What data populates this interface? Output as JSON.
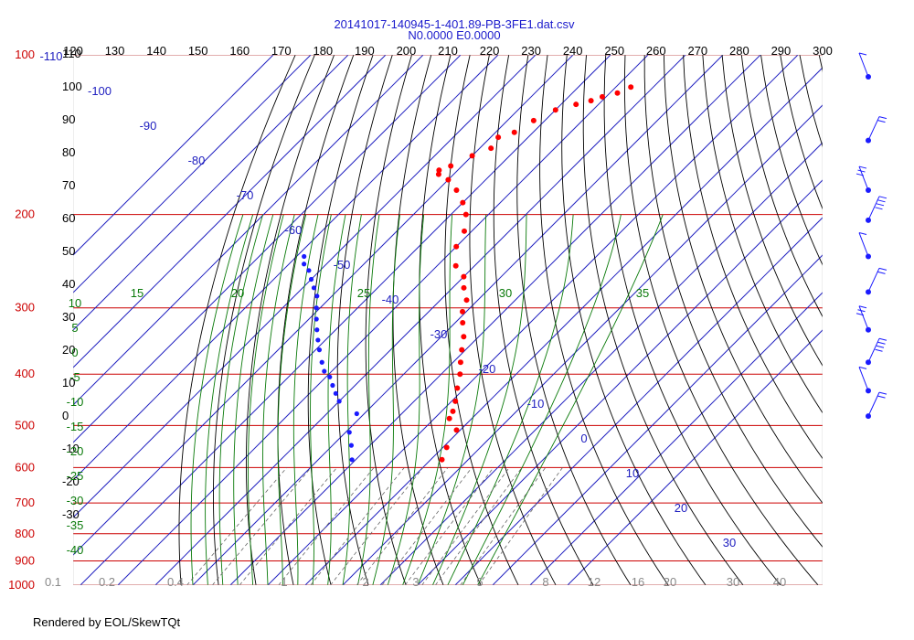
{
  "title": "20141017-140945-1-401.89-PB-3FE1.dat.csv",
  "subtitle": "N0.0000 E0.0000",
  "footer": "Rendered by EOL/SkewTQt",
  "colors": {
    "isotherm": "#2020c0",
    "isobar": "#cc0000",
    "dry_adiabat": "#000000",
    "moist_adiabat": "#0a7a0a",
    "mixing_ratio": "#666666",
    "temperature": "#ff0000",
    "dewpoint": "#1a1aff",
    "wind": "#1a1aff"
  },
  "chart_data": {
    "type": "scatter",
    "chart_kind": "skew-T log-P diagram",
    "pressure_range": [
      100,
      1000
    ],
    "pressure_labels": [
      "100",
      "200",
      "300",
      "400",
      "500",
      "600",
      "700",
      "800",
      "900",
      "1000"
    ],
    "top_temperature_labels": [
      "120",
      "130",
      "140",
      "150",
      "160",
      "170",
      "180",
      "190",
      "200",
      "210",
      "220",
      "230",
      "240",
      "250",
      "260",
      "270",
      "280",
      "290",
      "300"
    ],
    "isotherm_labels": [
      "-110",
      "-100",
      "-90",
      "-80",
      "-70",
      "-60",
      "-50",
      "-40",
      "-30",
      "-20",
      "-10",
      "0",
      "10",
      "20",
      "30"
    ],
    "dry_adiabat_labels": [
      "110",
      "100",
      "90",
      "80",
      "70",
      "60",
      "50",
      "40",
      "30",
      "20",
      "10",
      "0",
      "-10",
      "-20",
      "-30"
    ],
    "moist_adiabat_labels": [
      "15",
      "20",
      "25",
      "30",
      "35",
      "10",
      "5",
      "0",
      "-5",
      "-10",
      "-15",
      "-20",
      "-25",
      "-30",
      "-35",
      "-40"
    ],
    "mixing_ratio_labels": [
      "0.1",
      "0.2",
      "0.4",
      "1",
      "2",
      "3",
      "5",
      "8",
      "12",
      "16",
      "20",
      "30",
      "40"
    ],
    "grid": true,
    "series": [
      {
        "type": "temperature",
        "points": [
          {
            "p": 115,
            "t": -56
          },
          {
            "p": 118,
            "t": -58
          },
          {
            "p": 120,
            "t": -61
          },
          {
            "p": 122,
            "t": -63
          },
          {
            "p": 124,
            "t": -66
          },
          {
            "p": 127,
            "t": -70
          },
          {
            "p": 133,
            "t": -73
          },
          {
            "p": 140,
            "t": -75
          },
          {
            "p": 143,
            "t": -78
          },
          {
            "p": 150,
            "t": -77
          },
          {
            "p": 155,
            "t": -80
          },
          {
            "p": 162,
            "t": -83
          },
          {
            "p": 165,
            "t": -85
          },
          {
            "p": 168,
            "t": -84
          },
          {
            "p": 172,
            "t": -80
          },
          {
            "p": 180,
            "t": -75
          },
          {
            "p": 190,
            "t": -70
          },
          {
            "p": 200,
            "t": -66
          },
          {
            "p": 215,
            "t": -62
          },
          {
            "p": 230,
            "t": -60
          },
          {
            "p": 250,
            "t": -55
          },
          {
            "p": 262,
            "t": -50
          },
          {
            "p": 275,
            "t": -47
          },
          {
            "p": 290,
            "t": -43
          },
          {
            "p": 305,
            "t": -41
          },
          {
            "p": 320,
            "t": -38
          },
          {
            "p": 340,
            "t": -34
          },
          {
            "p": 360,
            "t": -31
          },
          {
            "p": 380,
            "t": -28
          },
          {
            "p": 400,
            "t": -25
          },
          {
            "p": 425,
            "t": -22
          },
          {
            "p": 450,
            "t": -19
          },
          {
            "p": 470,
            "t": -17
          },
          {
            "p": 485,
            "t": -16
          },
          {
            "p": 510,
            "t": -11
          },
          {
            "p": 550,
            "t": -9
          },
          {
            "p": 580,
            "t": -7
          }
        ]
      },
      {
        "type": "dewpoint",
        "points": [
          {
            "p": 240,
            "t": -98
          },
          {
            "p": 248,
            "t": -96
          },
          {
            "p": 255,
            "t": -93
          },
          {
            "p": 265,
            "t": -90
          },
          {
            "p": 275,
            "t": -87
          },
          {
            "p": 285,
            "t": -84
          },
          {
            "p": 300,
            "t": -81
          },
          {
            "p": 315,
            "t": -78
          },
          {
            "p": 330,
            "t": -75
          },
          {
            "p": 345,
            "t": -72
          },
          {
            "p": 360,
            "t": -69
          },
          {
            "p": 380,
            "t": -65
          },
          {
            "p": 395,
            "t": -62
          },
          {
            "p": 405,
            "t": -59
          },
          {
            "p": 420,
            "t": -56
          },
          {
            "p": 435,
            "t": -53
          },
          {
            "p": 450,
            "t": -50
          },
          {
            "p": 475,
            "t": -42
          },
          {
            "p": 515,
            "t": -39
          },
          {
            "p": 545,
            "t": -35
          },
          {
            "p": 580,
            "t": -31
          }
        ]
      }
    ],
    "wind_barbs": [
      {
        "p": 110
      },
      {
        "p": 145
      },
      {
        "p": 180
      },
      {
        "p": 205
      },
      {
        "p": 240
      },
      {
        "p": 280
      },
      {
        "p": 330
      },
      {
        "p": 380
      },
      {
        "p": 430
      },
      {
        "p": 480
      }
    ]
  }
}
